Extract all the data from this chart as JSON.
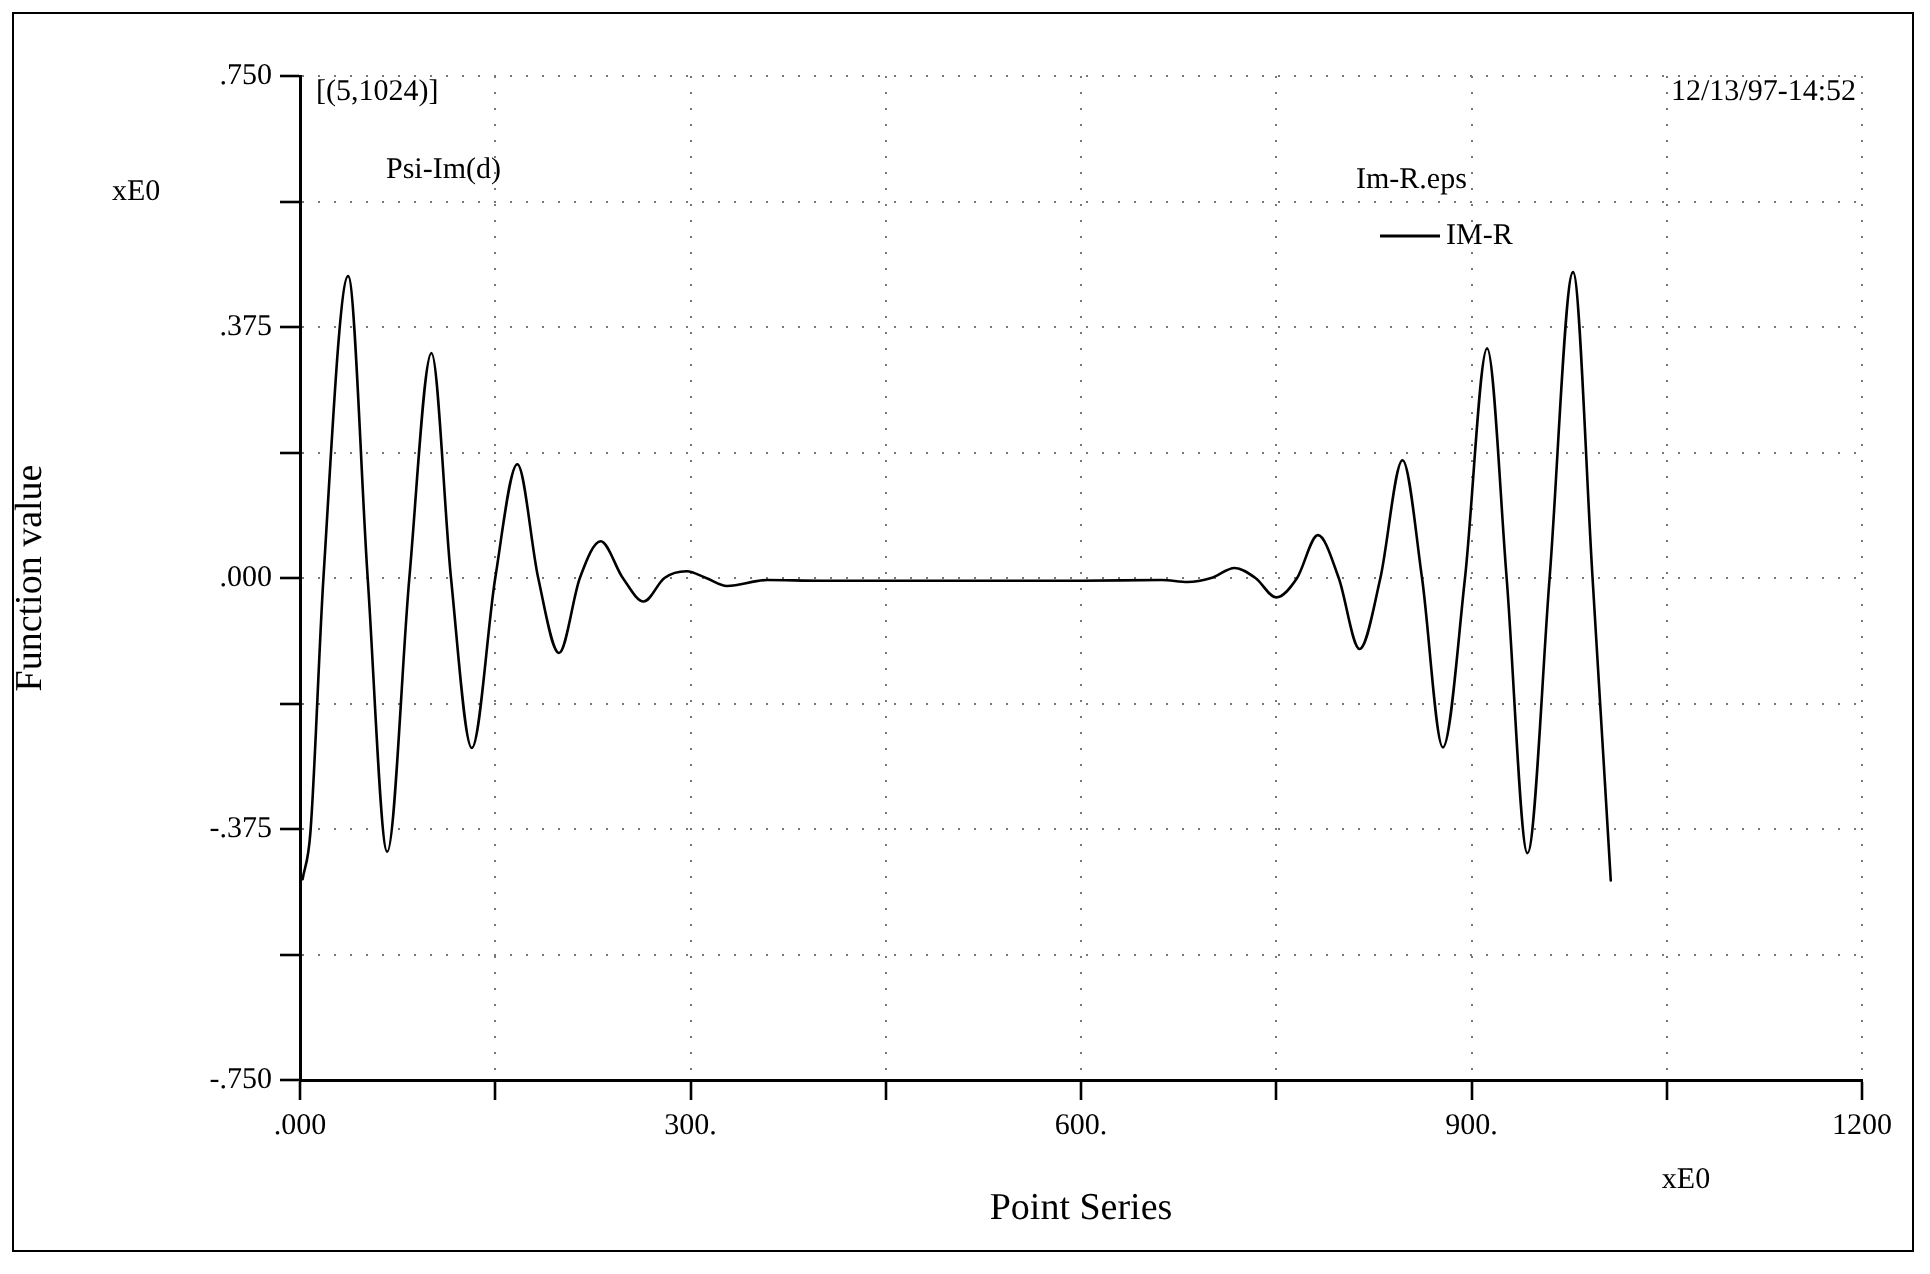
{
  "chart_data": {
    "type": "line",
    "xlabel": "Point Series",
    "ylabel": "Function value",
    "annotations": [
      "[(5,1024)]",
      "12/13/97-14:52",
      "Psi-Im(d)",
      "Im-R.eps",
      "xE0",
      "xE0"
    ],
    "xlim": [
      0,
      1200
    ],
    "xticks": [
      {
        "value": 0,
        "label": ".000"
      },
      {
        "value": 150,
        "label": null
      },
      {
        "value": 300,
        "label": "300."
      },
      {
        "value": 450,
        "label": null
      },
      {
        "value": 600,
        "label": "600."
      },
      {
        "value": 750,
        "label": null
      },
      {
        "value": 900,
        "label": "900."
      },
      {
        "value": 1050,
        "label": null
      },
      {
        "value": 1200,
        "label": "1200"
      }
    ],
    "ylim": [
      -0.75,
      0.75
    ],
    "yticks": [
      {
        "value": -0.75,
        "label": "-.750"
      },
      {
        "value": -0.5625,
        "label": null
      },
      {
        "value": -0.375,
        "label": "-.375"
      },
      {
        "value": -0.1875,
        "label": null
      },
      {
        "value": 0,
        "label": ".000"
      },
      {
        "value": 0.1875,
        "label": null
      },
      {
        "value": 0.375,
        "label": ".375"
      },
      {
        "value": 0.5625,
        "label": null
      },
      {
        "value": 0.75,
        "label": ".750"
      }
    ],
    "grid": true,
    "legend": "top right",
    "marker": "none",
    "line_style": "solid",
    "series": [
      {
        "name": "IM-R",
        "color": "#000000",
        "x": [
          2,
          8,
          18,
          37,
          52,
          67,
          84,
          101,
          116,
          132,
          150,
          167,
          183,
          199,
          215,
          231,
          248,
          264,
          280,
          297,
          312,
          328,
          359,
          400,
          500,
          600,
          662,
          682,
          700,
          718,
          734,
          750,
          766,
          782,
          798,
          814,
          830,
          847,
          862,
          878,
          895,
          912,
          927,
          943,
          960,
          978,
          993,
          1007
        ],
        "values": [
          -0.45,
          -0.38,
          0,
          0.451,
          0,
          -0.409,
          0,
          0.336,
          0,
          -0.254,
          0,
          0.17,
          0,
          -0.112,
          0,
          0.055,
          0,
          -0.035,
          0,
          0.01,
          0,
          -0.012,
          -0.003,
          -0.004,
          -0.004,
          -0.004,
          -0.003,
          -0.006,
          0,
          0.015,
          0,
          -0.029,
          0,
          0.064,
          0,
          -0.106,
          0,
          0.176,
          0,
          -0.253,
          0,
          0.343,
          0,
          -0.411,
          0,
          0.457,
          0,
          -0.452
        ]
      }
    ]
  }
}
